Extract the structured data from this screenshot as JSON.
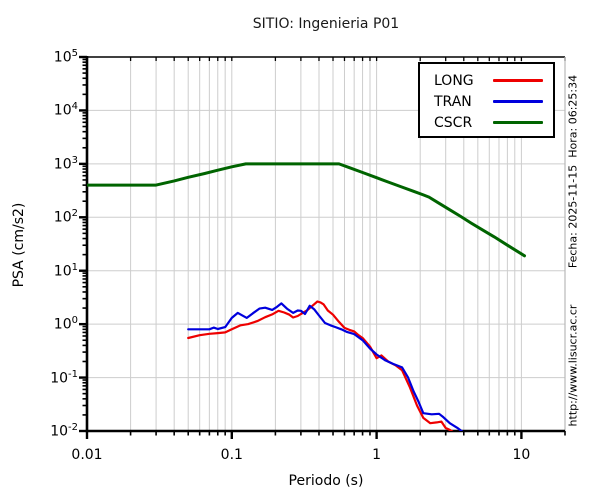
{
  "title": "SITIO: Ingenieria P01",
  "xlabel": "Periodo (s)",
  "ylabel": "PSA (cm/s2)",
  "stamps": {
    "datetime": "Fecha: 2025-11-15  Hora: 06:25:34",
    "url": "http://www.lisucr.ac.cr"
  },
  "colors": {
    "long": "#ee0000",
    "tran": "#0000dd",
    "cscr": "#006400",
    "grid": "#cdcdcd",
    "axis": "#000000"
  },
  "chart_data": {
    "type": "line",
    "title": "SITIO: Ingenieria P01",
    "xlabel": "Periodo (s)",
    "ylabel": "PSA (cm/s2)",
    "x_scale": "log",
    "y_scale": "log",
    "xlim": [
      0.01,
      20
    ],
    "ylim": [
      0.01,
      100000
    ],
    "grid": true,
    "legend_position": "top-right",
    "x_ticks": [
      0.01,
      0.1,
      1,
      10
    ],
    "x_tick_labels": [
      "0.01",
      "0.1",
      "1",
      "10"
    ],
    "y_tick_exponents": [
      5,
      4,
      3,
      2,
      1,
      0,
      -1,
      -2
    ],
    "series": [
      {
        "name": "LONG",
        "color": "#ee0000",
        "width": 2.2,
        "x": [
          0.05,
          0.06,
          0.07,
          0.08,
          0.09,
          0.1,
          0.115,
          0.13,
          0.15,
          0.17,
          0.19,
          0.21,
          0.23,
          0.25,
          0.265,
          0.285,
          0.3,
          0.33,
          0.36,
          0.39,
          0.41,
          0.43,
          0.46,
          0.5,
          0.55,
          0.6,
          0.65,
          0.7,
          0.75,
          0.8,
          0.9,
          1.0,
          1.08,
          1.2,
          1.35,
          1.5,
          1.7,
          1.9,
          2.1,
          2.35,
          2.6,
          2.8,
          3.0,
          3.2,
          3.45
        ],
        "y": [
          0.55,
          0.62,
          0.66,
          0.68,
          0.7,
          0.8,
          0.95,
          1.0,
          1.14,
          1.35,
          1.52,
          1.78,
          1.65,
          1.5,
          1.33,
          1.42,
          1.55,
          1.8,
          2.2,
          2.65,
          2.55,
          2.35,
          1.8,
          1.5,
          1.1,
          0.85,
          0.78,
          0.73,
          0.62,
          0.55,
          0.38,
          0.23,
          0.26,
          0.2,
          0.17,
          0.137,
          0.065,
          0.03,
          0.0176,
          0.014,
          0.0145,
          0.015,
          0.0114,
          0.0105,
          0.0092
        ]
      },
      {
        "name": "TRAN",
        "color": "#0000dd",
        "width": 2.2,
        "x": [
          0.05,
          0.06,
          0.07,
          0.075,
          0.08,
          0.09,
          0.1,
          0.11,
          0.127,
          0.14,
          0.155,
          0.17,
          0.19,
          0.205,
          0.22,
          0.24,
          0.265,
          0.285,
          0.3,
          0.32,
          0.345,
          0.37,
          0.4,
          0.44,
          0.48,
          0.52,
          0.57,
          0.62,
          0.7,
          0.8,
          0.9,
          1.0,
          1.15,
          1.3,
          1.5,
          1.65,
          1.8,
          1.95,
          2.1,
          2.4,
          2.7,
          2.9,
          3.2,
          3.6,
          3.9
        ],
        "y": [
          0.8,
          0.8,
          0.8,
          0.86,
          0.81,
          0.88,
          1.31,
          1.62,
          1.31,
          1.6,
          1.95,
          2.03,
          1.85,
          2.1,
          2.45,
          1.95,
          1.62,
          1.8,
          1.78,
          1.55,
          2.2,
          1.9,
          1.45,
          1.05,
          0.95,
          0.88,
          0.8,
          0.72,
          0.65,
          0.5,
          0.35,
          0.27,
          0.21,
          0.18,
          0.155,
          0.1,
          0.055,
          0.035,
          0.0215,
          0.0205,
          0.021,
          0.018,
          0.014,
          0.0115,
          0.0098
        ]
      },
      {
        "name": "CSCR",
        "color": "#006400",
        "width": 3,
        "x": [
          0.01,
          0.03,
          0.04,
          0.05,
          0.065,
          0.08,
          0.1,
          0.125,
          0.2,
          0.3,
          0.4,
          0.55,
          0.65,
          0.8,
          1.0,
          1.2,
          1.5,
          1.8,
          2.1,
          2.3,
          2.7,
          3.2,
          3.8,
          4.5,
          5.5,
          6.5,
          8.0,
          10.5
        ],
        "y": [
          400,
          400,
          480,
          560,
          660,
          760,
          880,
          1000,
          1000,
          1000,
          1000,
          1000,
          846,
          688,
          550,
          458,
          367,
          306,
          262,
          239,
          183,
          138,
          104,
          78,
          56,
          43,
          30,
          19
        ]
      }
    ]
  }
}
